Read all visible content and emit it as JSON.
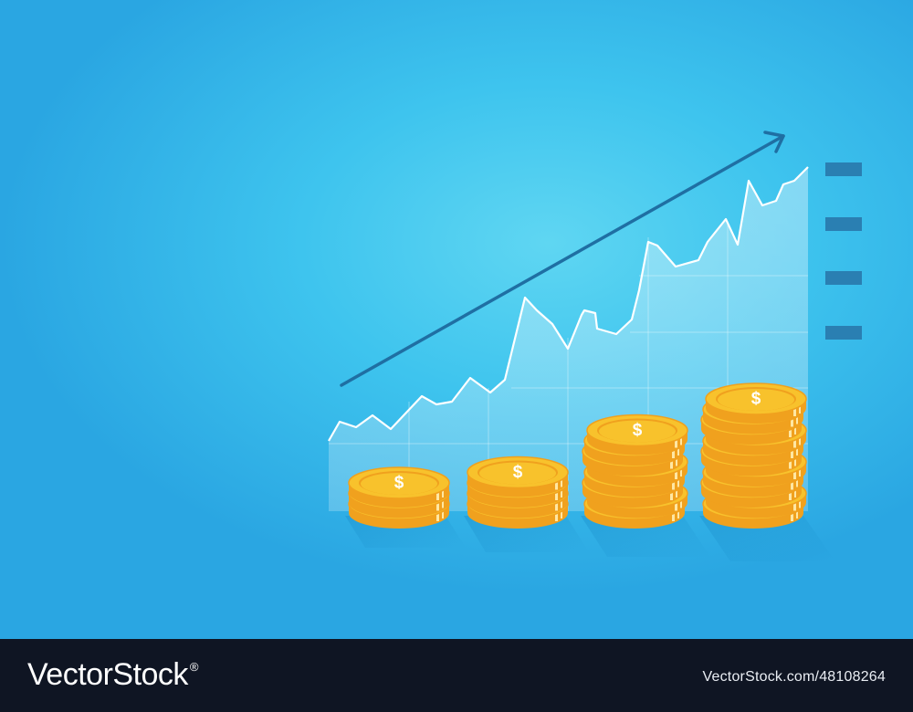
{
  "illustration": {
    "subject": "growth-chart-with-coin-stacks",
    "coin_symbol": "$",
    "coin_stack_heights": [
      3,
      4,
      8,
      11
    ],
    "legend_marker_count": 4,
    "colors": {
      "background": "#3ec4ee",
      "chart_area": "#d8f4ff",
      "line": "#ffffff",
      "arrow": "#1f6fa3",
      "legend": "#2a7fb2",
      "coin_face": "#f8c22c",
      "coin_edge": "#f0a11e",
      "coin_dark": "#e38d12"
    }
  },
  "footer": {
    "brand_name": "VectorStock",
    "brand_mark": "®",
    "credit": "VectorStock.com/48108264"
  }
}
